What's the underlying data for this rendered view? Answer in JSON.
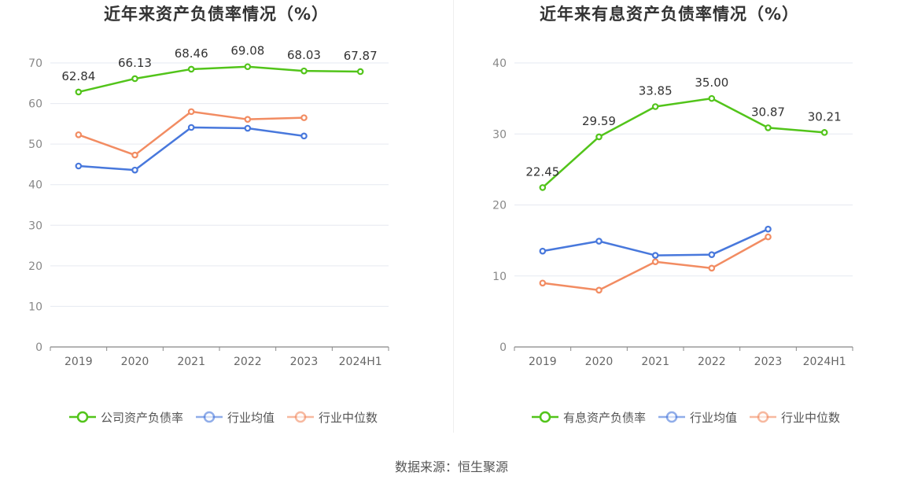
{
  "source": "数据来源：恒生聚源",
  "chart_data": [
    {
      "type": "line",
      "title": "近年来资产负债率情况（%）",
      "categories": [
        "2019",
        "2020",
        "2021",
        "2022",
        "2023",
        "2024H1"
      ],
      "ylim": [
        0,
        70
      ],
      "yticks": [
        0,
        10,
        20,
        30,
        40,
        50,
        60,
        70
      ],
      "series": [
        {
          "name": "公司资产负债率",
          "color": "#52c41a",
          "labeled": true,
          "values": [
            62.84,
            66.13,
            68.46,
            69.08,
            68.03,
            67.87
          ],
          "labels": [
            "62.84",
            "66.13",
            "68.46",
            "69.08",
            "68.03",
            "67.87"
          ]
        },
        {
          "name": "行业均值",
          "color": "#4878dc",
          "labeled": false,
          "values": [
            44.6,
            43.6,
            54.1,
            53.9,
            52.0,
            null
          ]
        },
        {
          "name": "行业中位数",
          "color": "#f28c62",
          "labeled": false,
          "values": [
            52.3,
            47.3,
            58.0,
            56.1,
            56.5,
            null
          ]
        }
      ]
    },
    {
      "type": "line",
      "title": "近年来有息资产负债率情况（%）",
      "categories": [
        "2019",
        "2020",
        "2021",
        "2022",
        "2023",
        "2024H1"
      ],
      "ylim": [
        0,
        40
      ],
      "yticks": [
        0,
        10,
        20,
        30,
        40
      ],
      "series": [
        {
          "name": "有息资产负债率",
          "color": "#52c41a",
          "labeled": true,
          "values": [
            22.45,
            29.59,
            33.85,
            35.0,
            30.87,
            30.21
          ],
          "labels": [
            "22.45",
            "29.59",
            "33.85",
            "35.00",
            "30.87",
            "30.21"
          ]
        },
        {
          "name": "行业均值",
          "color": "#4878dc",
          "labeled": false,
          "values": [
            13.5,
            14.9,
            12.9,
            13.0,
            16.6,
            null
          ]
        },
        {
          "name": "行业中位数",
          "color": "#f28c62",
          "labeled": false,
          "values": [
            9.0,
            8.0,
            12.0,
            11.1,
            15.5,
            null
          ]
        }
      ]
    }
  ]
}
